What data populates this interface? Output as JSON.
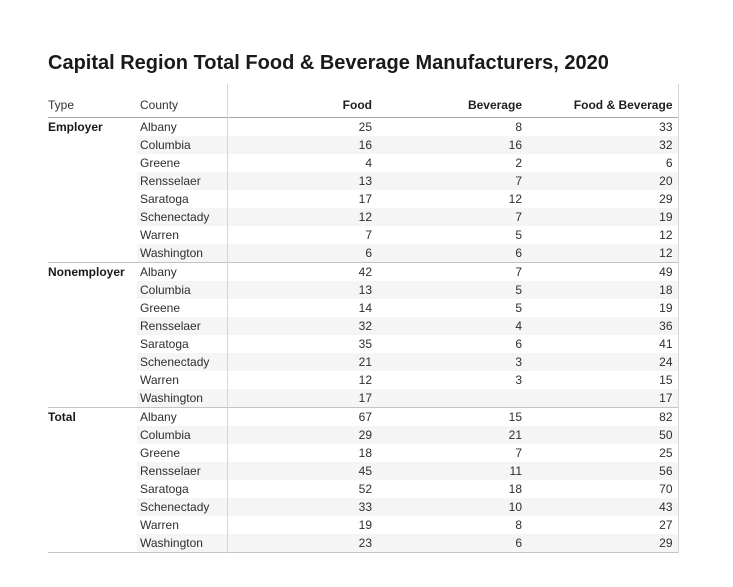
{
  "title": "Capital Region Total Food & Beverage Manufacturers, 2020",
  "chart_data": {
    "type": "table",
    "title": "Capital Region Total Food & Beverage Manufacturers, 2020",
    "columns": [
      "Type",
      "County",
      "Food",
      "Beverage",
      "Food & Beverage"
    ],
    "rows": [
      [
        "Employer",
        "Albany",
        25,
        8,
        33
      ],
      [
        "",
        "Columbia",
        16,
        16,
        32
      ],
      [
        "",
        "Greene",
        4,
        2,
        6
      ],
      [
        "",
        "Rensselaer",
        13,
        7,
        20
      ],
      [
        "",
        "Saratoga",
        17,
        12,
        29
      ],
      [
        "",
        "Schenectady",
        12,
        7,
        19
      ],
      [
        "",
        "Warren",
        7,
        5,
        12
      ],
      [
        "",
        "Washington",
        6,
        6,
        12
      ],
      [
        "Nonemployer",
        "Albany",
        42,
        7,
        49
      ],
      [
        "",
        "Columbia",
        13,
        5,
        18
      ],
      [
        "",
        "Greene",
        14,
        5,
        19
      ],
      [
        "",
        "Rensselaer",
        32,
        4,
        36
      ],
      [
        "",
        "Saratoga",
        35,
        6,
        41
      ],
      [
        "",
        "Schenectady",
        21,
        3,
        24
      ],
      [
        "",
        "Warren",
        12,
        3,
        15
      ],
      [
        "",
        "Washington",
        17,
        "",
        17
      ],
      [
        "Total",
        "Albany",
        67,
        15,
        82
      ],
      [
        "",
        "Columbia",
        29,
        21,
        50
      ],
      [
        "",
        "Greene",
        18,
        7,
        25
      ],
      [
        "",
        "Rensselaer",
        45,
        11,
        56
      ],
      [
        "",
        "Saratoga",
        52,
        18,
        70
      ],
      [
        "",
        "Schenectady",
        33,
        10,
        43
      ],
      [
        "",
        "Warren",
        19,
        8,
        27
      ],
      [
        "",
        "Washington",
        23,
        6,
        29
      ]
    ],
    "section_starts": [
      0,
      8,
      16
    ],
    "layout": {
      "banded_rows": true,
      "banded_row_color": "#f5f5f5",
      "grid_color": "#c4c4c4",
      "header_rule_color": "#a9a9a9",
      "numeric_alignment": "right"
    }
  }
}
